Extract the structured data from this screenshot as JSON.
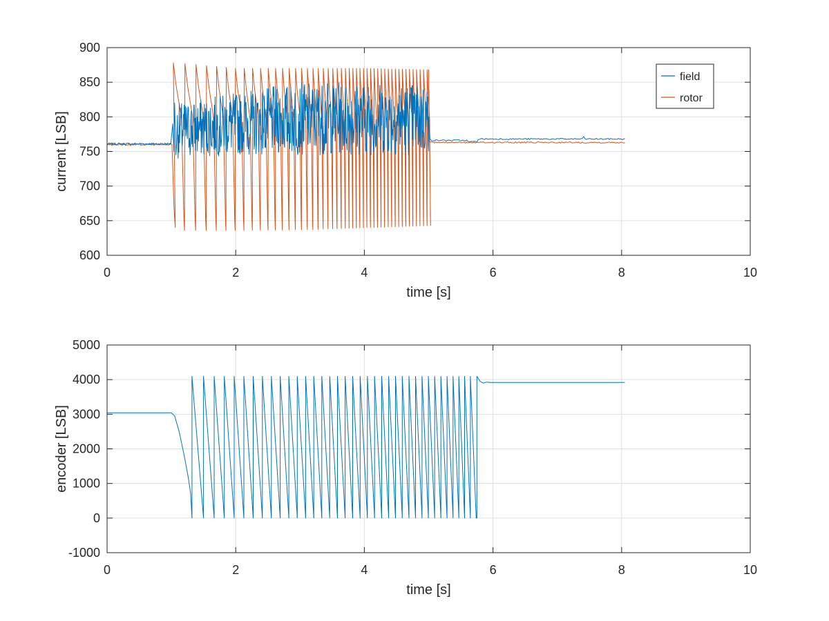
{
  "chart_data": [
    {
      "type": "line",
      "xlabel": "time [s]",
      "ylabel": "current [LSB]",
      "xlim": [
        0,
        10
      ],
      "ylim": [
        600,
        900
      ],
      "xticks": [
        0,
        2,
        4,
        6,
        8,
        10
      ],
      "yticks": [
        600,
        650,
        700,
        750,
        800,
        850,
        900
      ],
      "xtick_labels": [
        "0",
        "2",
        "4",
        "6",
        "8",
        "10"
      ],
      "ytick_labels": [
        "600",
        "650",
        "700",
        "750",
        "800",
        "850",
        "900"
      ],
      "grid": true,
      "legend_position": "top-right",
      "series": [
        {
          "name": "field",
          "color": "#0072BD",
          "description_points": [
            [
              0,
              761
            ],
            [
              1.0,
              761
            ],
            [
              1.03,
              790
            ],
            [
              1.05,
              820
            ],
            [
              1.08,
              745
            ],
            [
              1.1,
              800
            ],
            [
              1.3,
              805
            ],
            [
              1.35,
              735
            ],
            [
              1.5,
              810
            ],
            [
              2.0,
              805
            ],
            [
              3.0,
              805
            ],
            [
              4.0,
              805
            ],
            [
              4.8,
              805
            ],
            [
              5.0,
              800
            ],
            [
              5.02,
              768
            ],
            [
              5.5,
              766
            ],
            [
              5.7,
              764
            ],
            [
              5.75,
              768
            ],
            [
              7.0,
              768
            ],
            [
              7.4,
              772
            ],
            [
              8.05,
              767
            ]
          ],
          "envelope": [
            {
              "x": 1.1,
              "lo": 740,
              "hi": 820
            },
            {
              "x": 2.0,
              "lo": 745,
              "hi": 835
            },
            {
              "x": 3.0,
              "lo": 745,
              "hi": 850
            },
            {
              "x": 4.0,
              "lo": 745,
              "hi": 850
            },
            {
              "x": 5.0,
              "lo": 745,
              "hi": 850
            }
          ]
        },
        {
          "name": "rotor",
          "color": "#D95319",
          "description_points": [
            [
              0,
              760
            ],
            [
              1.0,
              760
            ],
            [
              1.05,
              670
            ],
            [
              1.09,
              878
            ],
            [
              1.15,
              850
            ],
            [
              1.2,
              825
            ],
            [
              1.3,
              820
            ],
            [
              1.4,
              636
            ],
            [
              2.0,
              636
            ],
            [
              3.0,
              637
            ],
            [
              4.0,
              640
            ],
            [
              4.9,
              643
            ],
            [
              5.0,
              868
            ],
            [
              5.02,
              764
            ],
            [
              6.0,
              763
            ],
            [
              8.05,
              763
            ]
          ],
          "envelope": [
            {
              "x": 1.1,
              "lo": 636,
              "hi": 878
            },
            {
              "x": 2.0,
              "lo": 636,
              "hi": 870
            },
            {
              "x": 3.0,
              "lo": 637,
              "hi": 870
            },
            {
              "x": 4.0,
              "lo": 640,
              "hi": 870
            },
            {
              "x": 5.0,
              "lo": 643,
              "hi": 868
            }
          ]
        }
      ]
    },
    {
      "type": "line",
      "xlabel": "time [s]",
      "ylabel": "encoder [LSB]",
      "xlim": [
        0,
        10
      ],
      "ylim": [
        -1000,
        5000
      ],
      "xticks": [
        0,
        2,
        4,
        6,
        8,
        10
      ],
      "yticks": [
        -1000,
        0,
        1000,
        2000,
        3000,
        4000,
        5000
      ],
      "xtick_labels": [
        "0",
        "2",
        "4",
        "6",
        "8",
        "10"
      ],
      "ytick_labels": [
        "-1000",
        "0",
        "1000",
        "2000",
        "3000",
        "4000",
        "5000"
      ],
      "grid": true,
      "series": [
        {
          "color": "#0072BD",
          "points": [
            [
              0,
              3040
            ],
            [
              1.0,
              3040
            ],
            [
              1.05,
              2950
            ],
            [
              1.1,
              2600
            ],
            [
              1.2,
              1800
            ],
            [
              1.25,
              1200
            ],
            [
              1.3,
              600
            ],
            [
              1.32,
              0
            ],
            [
              1.32,
              4095
            ],
            [
              1.5,
              0
            ],
            [
              1.5,
              4095
            ],
            [
              5.73,
              0
            ],
            [
              5.75,
              4095
            ],
            [
              5.8,
              3950
            ],
            [
              5.9,
              3920
            ],
            [
              8.05,
              3920
            ]
          ],
          "sawtooth": {
            "min": 0,
            "max": 4095,
            "period_start": 0.18,
            "period_end": 0.07,
            "t_start": 1.32,
            "t_end": 5.75
          }
        }
      ]
    }
  ]
}
